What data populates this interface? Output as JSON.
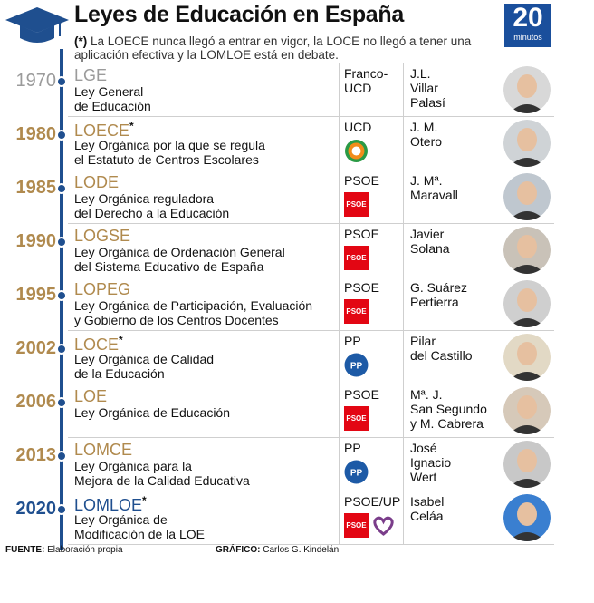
{
  "header": {
    "title": "Leyes de Educación en España",
    "note_marker": "(*)",
    "note": "La LOECE nunca llegó a entrar en vigor, la LOCE no llegó a tener una aplicación efectiva y la LOMLOE está en debate.",
    "brand_number": "20",
    "brand_text": "minutos"
  },
  "laws": [
    {
      "year": "1970",
      "acronym": "LGE",
      "star": "",
      "desc": [
        "Ley General",
        "de Educación"
      ],
      "party": [
        "Franco-",
        "UCD"
      ],
      "logo": "",
      "minister": [
        "J.L.",
        "Villar",
        "Palasí"
      ]
    },
    {
      "year": "1980",
      "acronym": "LOECE",
      "star": "*",
      "desc": [
        "Ley Orgánica por la que se regula",
        "el Estatuto de Centros Escolares"
      ],
      "party": [
        "UCD"
      ],
      "logo": "ucd",
      "minister": [
        "J. M.",
        "Otero"
      ]
    },
    {
      "year": "1985",
      "acronym": "LODE",
      "star": "",
      "desc": [
        "Ley Orgánica reguladora",
        "del Derecho a la Educación"
      ],
      "party": [
        "PSOE"
      ],
      "logo": "psoe",
      "minister": [
        "J. Mª.",
        "Maravall"
      ]
    },
    {
      "year": "1990",
      "acronym": "LOGSE",
      "star": "",
      "desc": [
        "Ley Orgánica de Ordenación General",
        "del Sistema Educativo de España"
      ],
      "party": [
        "PSOE"
      ],
      "logo": "psoe",
      "minister": [
        "Javier",
        "Solana"
      ]
    },
    {
      "year": "1995",
      "acronym": "LOPEG",
      "star": "",
      "desc": [
        "Ley Orgánica de Participación, Evaluación",
        "y Gobierno de los Centros Docentes"
      ],
      "party": [
        "PSOE"
      ],
      "logo": "psoe",
      "minister": [
        "G. Suárez",
        "Pertierra"
      ]
    },
    {
      "year": "2002",
      "acronym": "LOCE",
      "star": "*",
      "desc": [
        "Ley Orgánica de Calidad",
        "de la Educación"
      ],
      "party": [
        "PP"
      ],
      "logo": "pp",
      "minister": [
        "Pilar",
        "del Castillo"
      ]
    },
    {
      "year": "2006",
      "acronym": "LOE",
      "star": "",
      "desc": [
        "Ley Orgánica de Educación"
      ],
      "party": [
        "PSOE"
      ],
      "logo": "psoe",
      "minister": [
        "Mª. J.",
        "San Segundo",
        "y M. Cabrera"
      ]
    },
    {
      "year": "2013",
      "acronym": "LOMCE",
      "star": "",
      "desc": [
        "Ley Orgánica para la",
        "Mejora de la Calidad Educativa"
      ],
      "party": [
        "PP"
      ],
      "logo": "pp",
      "minister": [
        "José",
        "Ignacio",
        "Wert"
      ]
    },
    {
      "year": "2020",
      "acronym": "LOMLOE",
      "star": "*",
      "desc": [
        "Ley Orgánica de",
        "Modificación de la LOE"
      ],
      "party": [
        "PSOE/UP"
      ],
      "logo": "psoe-up",
      "minister": [
        "Isabel",
        "Celáa"
      ]
    }
  ],
  "logo_text": {
    "psoe": "PSOE",
    "pp": "PP"
  },
  "footer": {
    "source_label": "FUENTE:",
    "source": "Elaboración propia",
    "graphic_label": "GRÁFICO:",
    "graphic": "Carlos G. Kindelán"
  },
  "colors": {
    "accent": "#1f4f8f",
    "gold": "#b08a4e",
    "psoe": "#e30613",
    "pp": "#1d5aa6",
    "brand": "#1a4f9c"
  }
}
